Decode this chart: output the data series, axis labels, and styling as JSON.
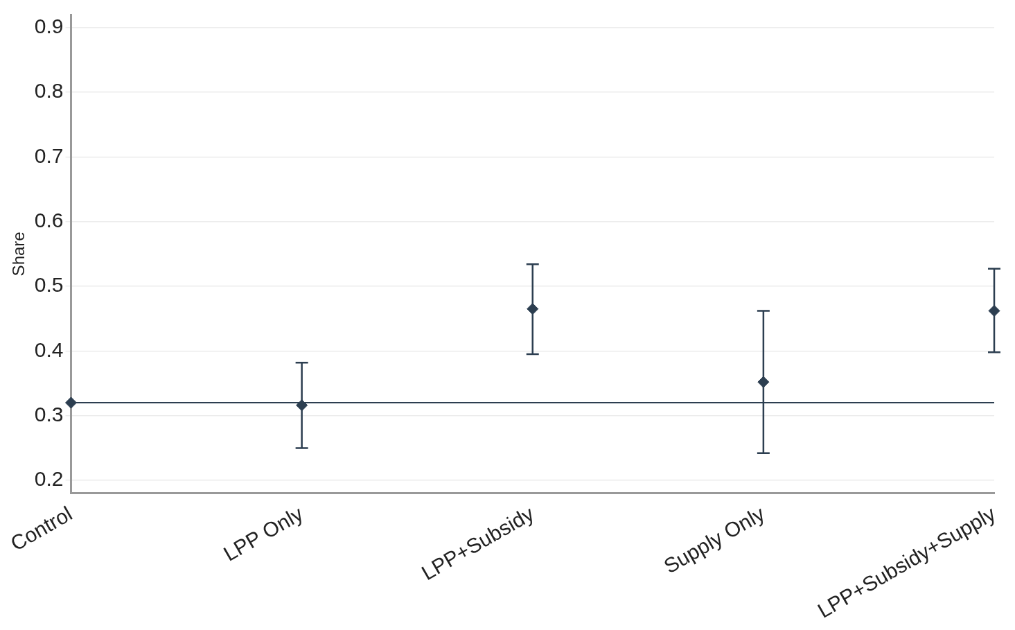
{
  "chart_data": {
    "type": "scatter",
    "ylabel": "Share",
    "categories": [
      "Control",
      "LPP Only",
      "LPP+Subsidy",
      "Supply Only",
      "LPP+Subsidy+Supply"
    ],
    "series": [
      {
        "color": "#2c3e50",
        "values": [
          0.32,
          0.316,
          0.465,
          0.352,
          0.462
        ],
        "errors": [
          null,
          [
            0.25,
            0.382
          ],
          [
            0.395,
            0.534
          ],
          [
            0.242,
            0.462
          ],
          [
            0.398,
            0.527
          ]
        ]
      }
    ],
    "ref_lines": [
      {
        "axis": "y",
        "value": 0.32,
        "color": "#2c3e50"
      }
    ],
    "ylim": [
      0.18,
      0.92
    ],
    "yticks": [
      0.2,
      0.3,
      0.4,
      0.5,
      0.6,
      0.7,
      0.8,
      0.9
    ],
    "grid": "y",
    "marker": "diamond"
  }
}
